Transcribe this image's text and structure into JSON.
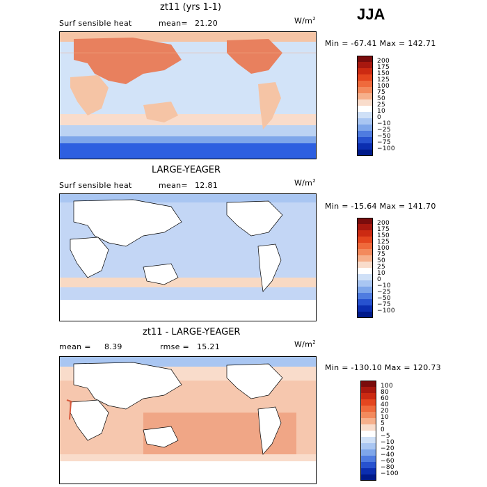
{
  "season": "JJA",
  "panels": [
    {
      "title": "zt11 (yrs 1-1)",
      "left_label": "Surf sensible heat",
      "stat1_label": "mean=",
      "stat1_value": "21.20",
      "units": "W/m",
      "units_exp": "2",
      "minmax": "Min = -67.41  Max = 142.71",
      "colorbar_labels": [
        "200",
        "175",
        "150",
        "125",
        "100",
        "75",
        "50",
        "25",
        "10",
        "0",
        "−10",
        "−25",
        "−50",
        "−75",
        "−100"
      ],
      "colors": {
        "ocean": "#d2e3f8",
        "warm": "#f5c4a5",
        "hot": "#e8805e",
        "cold": "#2d5fe0"
      }
    },
    {
      "title": "LARGE-YEAGER",
      "left_label": "Surf sensible heat",
      "stat1_label": "mean=",
      "stat1_value": "12.81",
      "units": "W/m",
      "units_exp": "2",
      "minmax": "Min = -15.64  Max = 141.70",
      "colorbar_labels": [
        "200",
        "175",
        "150",
        "125",
        "100",
        "75",
        "50",
        "25",
        "10",
        "0",
        "−10",
        "−25",
        "−50",
        "−75",
        "−100"
      ],
      "colors": {
        "ocean": "#c3d6f5",
        "warm": "#f8d9c3",
        "hot": "#e8805e",
        "cold": "#5d86e6"
      }
    },
    {
      "title": "zt11 - LARGE-YEAGER",
      "left_label": "mean =",
      "stat1_label": "",
      "stat1_value": "8.39",
      "stat2_label": "rmse =",
      "stat2_value": "15.21",
      "units": "W/m",
      "units_exp": "2",
      "minmax": "Min = -130.10  Max = 120.73",
      "colorbar_labels": [
        "100",
        "80",
        "60",
        "40",
        "20",
        "10",
        "5",
        "0",
        "−5",
        "−10",
        "−20",
        "−40",
        "−60",
        "−80",
        "−100"
      ],
      "colors": {
        "ocean": "#f6c7ae",
        "warm": "#ef9d7c",
        "hot": "#d8583b",
        "cold": "#4f78e0"
      }
    }
  ],
  "colorbar_colors": [
    "#7a0c0c",
    "#a8180f",
    "#cc2a12",
    "#e4461f",
    "#ef6a3c",
    "#f38a5d",
    "#f6b08c",
    "#f9dccb",
    "#ffffff",
    "#cfe0f7",
    "#a9c6f2",
    "#7ea6ea",
    "#4f7ce0",
    "#2752cf",
    "#0b2eb0",
    "#001a8a"
  ]
}
